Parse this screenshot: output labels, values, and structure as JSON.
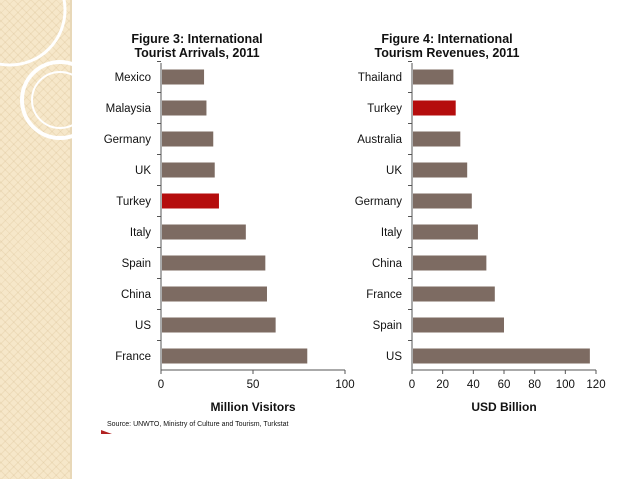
{
  "colors": {
    "bar": "#7d6b62",
    "highlight": "#b50d0d",
    "axis": "#555555",
    "text": "#111111"
  },
  "source_note": "Source:  UNWTO, Ministry of Culture and Tourism, Turkstat",
  "chart_data": [
    {
      "type": "bar",
      "orientation": "horizontal",
      "title_lines": [
        "Figure 3: International",
        "Tourist Arrivals, 2011"
      ],
      "categories": [
        "Mexico",
        "Malaysia",
        "Germany",
        "UK",
        "Turkey",
        "Italy",
        "Spain",
        "China",
        "US",
        "France"
      ],
      "values": [
        23.4,
        24.7,
        28.4,
        29.2,
        31.5,
        46.1,
        56.7,
        57.6,
        62.3,
        79.5
      ],
      "highlight": "Turkey",
      "xlabel": "Million Visitors",
      "xlim": [
        0,
        100
      ],
      "xticks": [
        0,
        50,
        100
      ],
      "grid": false
    },
    {
      "type": "bar",
      "orientation": "horizontal",
      "title_lines": [
        "Figure 4: International",
        "Tourism Revenues, 2011"
      ],
      "categories": [
        "Thailand",
        "Turkey",
        "Australia",
        "UK",
        "Germany",
        "Italy",
        "China",
        "France",
        "Spain",
        "US"
      ],
      "values": [
        27,
        28.5,
        31.5,
        36,
        39,
        43,
        48.5,
        54,
        60,
        116
      ],
      "highlight": "Turkey",
      "xlabel": "USD Billion",
      "xlim": [
        0,
        120
      ],
      "xticks": [
        0,
        20,
        40,
        60,
        80,
        100,
        120
      ],
      "grid": false
    }
  ]
}
